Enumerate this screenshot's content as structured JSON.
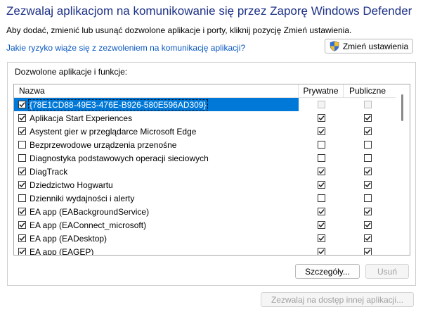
{
  "header": {
    "title": "Zezwalaj aplikacjom na komunikowanie się przez Zaporę Windows Defender",
    "subtitle": "Aby dodać, zmienić lub usunąć dozwolone aplikacje i porty, kliknij pozycję Zmień ustawienia.",
    "risk_link": "Jakie ryzyko wiąże się z zezwoleniem na komunikację aplikacji?",
    "change_settings_label": "Zmień ustawienia",
    "change_settings_icon": "uac-shield-icon"
  },
  "group": {
    "label": "Dozwolone aplikacje i funkcje:"
  },
  "table": {
    "columns": {
      "name": "Nazwa",
      "private": "Prywatne",
      "public": "Publiczne"
    },
    "rows": [
      {
        "name": "{78E1CD88-49E3-476E-B926-580E596AD309}",
        "enabled": true,
        "private": false,
        "public": false,
        "selected": true
      },
      {
        "name": "Aplikacja Start Experiences",
        "enabled": true,
        "private": true,
        "public": true,
        "selected": false
      },
      {
        "name": "Asystent gier w przeglądarce Microsoft Edge",
        "enabled": true,
        "private": true,
        "public": true,
        "selected": false
      },
      {
        "name": "Bezprzewodowe urządzenia przenośne",
        "enabled": false,
        "private": false,
        "public": false,
        "selected": false
      },
      {
        "name": "Diagnostyka podstawowych operacji sieciowych",
        "enabled": false,
        "private": false,
        "public": false,
        "selected": false
      },
      {
        "name": "DiagTrack",
        "enabled": true,
        "private": true,
        "public": true,
        "selected": false
      },
      {
        "name": "Dziedzictwo Hogwartu",
        "enabled": true,
        "private": true,
        "public": true,
        "selected": false
      },
      {
        "name": "Dzienniki wydajności i alerty",
        "enabled": false,
        "private": false,
        "public": false,
        "selected": false
      },
      {
        "name": "EA app (EABackgroundService)",
        "enabled": true,
        "private": true,
        "public": true,
        "selected": false
      },
      {
        "name": "EA app (EAConnect_microsoft)",
        "enabled": true,
        "private": true,
        "public": true,
        "selected": false
      },
      {
        "name": "EA app (EADesktop)",
        "enabled": true,
        "private": true,
        "public": true,
        "selected": false
      },
      {
        "name": "EA app (EAGEP)",
        "enabled": true,
        "private": true,
        "public": true,
        "selected": false
      }
    ]
  },
  "buttons": {
    "details": "Szczegóły...",
    "remove": "Usuń",
    "allow_other": "Zezwalaj na dostęp innej aplikacji..."
  },
  "colors": {
    "title": "#1e3287",
    "link": "#0a58c2",
    "selection": "#0078d7"
  }
}
